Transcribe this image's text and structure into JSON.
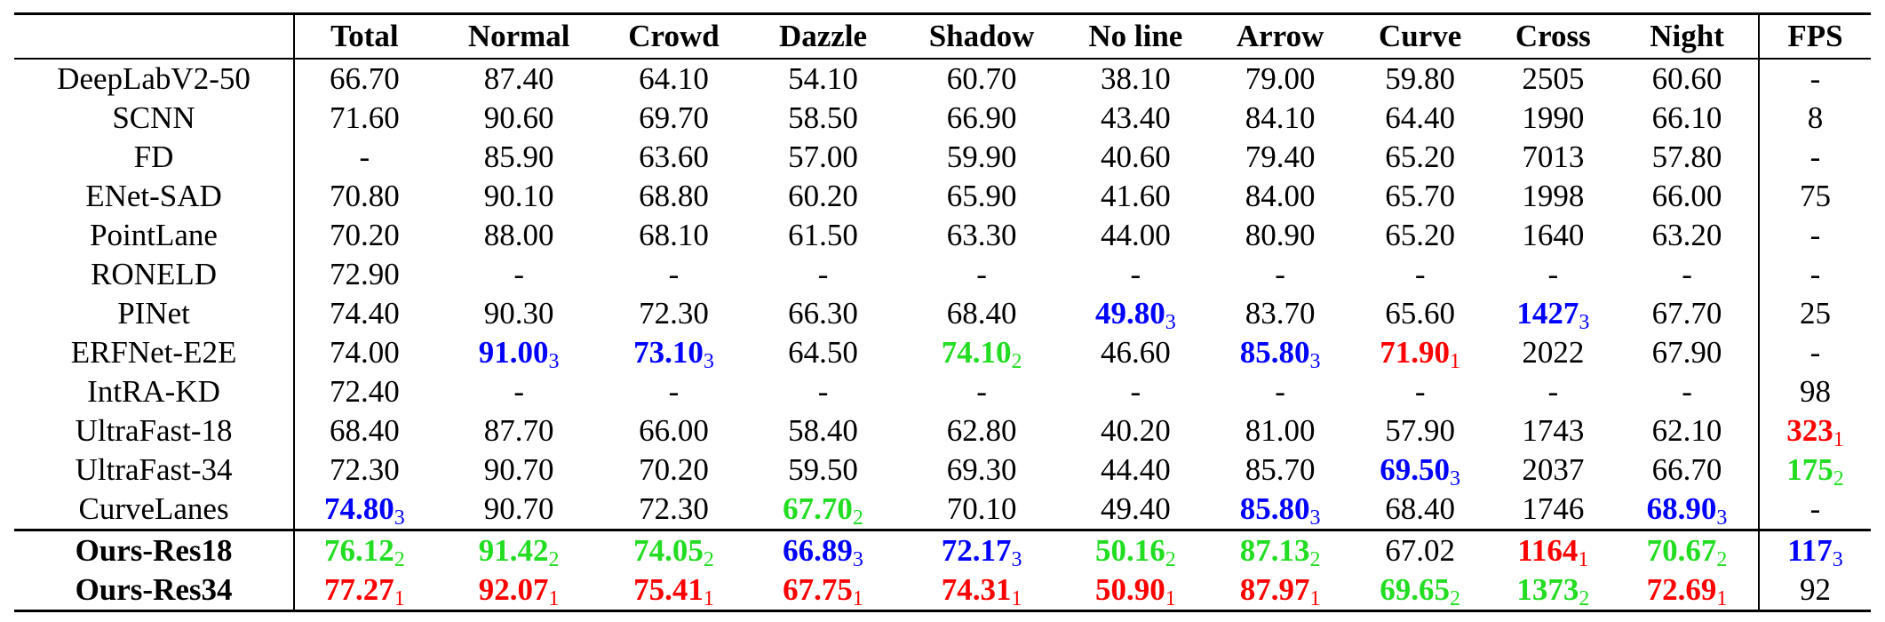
{
  "colors": {
    "rank1": "#ff0000",
    "rank2": "#22dd22",
    "rank3": "#0000ff"
  },
  "headers": [
    "",
    "Total",
    "Normal",
    "Crowd",
    "Dazzle",
    "Shadow",
    "No line",
    "Arrow",
    "Curve",
    "Cross",
    "Night",
    "FPS"
  ],
  "rows": [
    {
      "method": "DeepLabV2-50",
      "ours": false,
      "cells": [
        {
          "v": "66.70"
        },
        {
          "v": "87.40"
        },
        {
          "v": "64.10"
        },
        {
          "v": "54.10"
        },
        {
          "v": "60.70"
        },
        {
          "v": "38.10"
        },
        {
          "v": "79.00"
        },
        {
          "v": "59.80"
        },
        {
          "v": "2505"
        },
        {
          "v": "60.60"
        },
        {
          "v": "-"
        }
      ]
    },
    {
      "method": "SCNN",
      "ours": false,
      "cells": [
        {
          "v": "71.60"
        },
        {
          "v": "90.60"
        },
        {
          "v": "69.70"
        },
        {
          "v": "58.50"
        },
        {
          "v": "66.90"
        },
        {
          "v": "43.40"
        },
        {
          "v": "84.10"
        },
        {
          "v": "64.40"
        },
        {
          "v": "1990"
        },
        {
          "v": "66.10"
        },
        {
          "v": "8"
        }
      ]
    },
    {
      "method": "FD",
      "ours": false,
      "cells": [
        {
          "v": "-"
        },
        {
          "v": "85.90"
        },
        {
          "v": "63.60"
        },
        {
          "v": "57.00"
        },
        {
          "v": "59.90"
        },
        {
          "v": "40.60"
        },
        {
          "v": "79.40"
        },
        {
          "v": "65.20"
        },
        {
          "v": "7013"
        },
        {
          "v": "57.80"
        },
        {
          "v": "-"
        }
      ]
    },
    {
      "method": "ENet-SAD",
      "ours": false,
      "cells": [
        {
          "v": "70.80"
        },
        {
          "v": "90.10"
        },
        {
          "v": "68.80"
        },
        {
          "v": "60.20"
        },
        {
          "v": "65.90"
        },
        {
          "v": "41.60"
        },
        {
          "v": "84.00"
        },
        {
          "v": "65.70"
        },
        {
          "v": "1998"
        },
        {
          "v": "66.00"
        },
        {
          "v": "75"
        }
      ]
    },
    {
      "method": "PointLane",
      "ours": false,
      "cells": [
        {
          "v": "70.20"
        },
        {
          "v": "88.00"
        },
        {
          "v": "68.10"
        },
        {
          "v": "61.50"
        },
        {
          "v": "63.30"
        },
        {
          "v": "44.00"
        },
        {
          "v": "80.90"
        },
        {
          "v": "65.20"
        },
        {
          "v": "1640"
        },
        {
          "v": "63.20"
        },
        {
          "v": "-"
        }
      ]
    },
    {
      "method": "RONELD",
      "ours": false,
      "cells": [
        {
          "v": "72.90"
        },
        {
          "v": "-"
        },
        {
          "v": "-"
        },
        {
          "v": "-"
        },
        {
          "v": "-"
        },
        {
          "v": "-"
        },
        {
          "v": "-"
        },
        {
          "v": "-"
        },
        {
          "v": "-"
        },
        {
          "v": "-"
        },
        {
          "v": "-"
        }
      ]
    },
    {
      "method": "PINet",
      "ours": false,
      "cells": [
        {
          "v": "74.40"
        },
        {
          "v": "90.30"
        },
        {
          "v": "72.30"
        },
        {
          "v": "66.30"
        },
        {
          "v": "68.40"
        },
        {
          "v": "49.80",
          "r": "3"
        },
        {
          "v": "83.70"
        },
        {
          "v": "65.60"
        },
        {
          "v": "1427",
          "r": "3"
        },
        {
          "v": "67.70"
        },
        {
          "v": "25"
        }
      ]
    },
    {
      "method": "ERFNet-E2E",
      "ours": false,
      "cells": [
        {
          "v": "74.00"
        },
        {
          "v": "91.00",
          "r": "3"
        },
        {
          "v": "73.10",
          "r": "3"
        },
        {
          "v": "64.50"
        },
        {
          "v": "74.10",
          "r": "2"
        },
        {
          "v": "46.60"
        },
        {
          "v": "85.80",
          "r": "3"
        },
        {
          "v": "71.90",
          "r": "1"
        },
        {
          "v": "2022"
        },
        {
          "v": "67.90"
        },
        {
          "v": "-"
        }
      ]
    },
    {
      "method": "IntRA-KD",
      "ours": false,
      "cells": [
        {
          "v": "72.40"
        },
        {
          "v": "-"
        },
        {
          "v": "-"
        },
        {
          "v": "-"
        },
        {
          "v": "-"
        },
        {
          "v": "-"
        },
        {
          "v": "-"
        },
        {
          "v": "-"
        },
        {
          "v": "-"
        },
        {
          "v": "-"
        },
        {
          "v": "98"
        }
      ]
    },
    {
      "method": "UltraFast-18",
      "ours": false,
      "cells": [
        {
          "v": "68.40"
        },
        {
          "v": "87.70"
        },
        {
          "v": "66.00"
        },
        {
          "v": "58.40"
        },
        {
          "v": "62.80"
        },
        {
          "v": "40.20"
        },
        {
          "v": "81.00"
        },
        {
          "v": "57.90"
        },
        {
          "v": "1743"
        },
        {
          "v": "62.10"
        },
        {
          "v": "323",
          "r": "1"
        }
      ]
    },
    {
      "method": "UltraFast-34",
      "ours": false,
      "cells": [
        {
          "v": "72.30"
        },
        {
          "v": "90.70"
        },
        {
          "v": "70.20"
        },
        {
          "v": "59.50"
        },
        {
          "v": "69.30"
        },
        {
          "v": "44.40"
        },
        {
          "v": "85.70"
        },
        {
          "v": "69.50",
          "r": "3"
        },
        {
          "v": "2037"
        },
        {
          "v": "66.70"
        },
        {
          "v": "175",
          "r": "2"
        }
      ]
    },
    {
      "method": "CurveLanes",
      "ours": false,
      "cells": [
        {
          "v": "74.80",
          "r": "3"
        },
        {
          "v": "90.70"
        },
        {
          "v": "72.30"
        },
        {
          "v": "67.70",
          "r": "2"
        },
        {
          "v": "70.10"
        },
        {
          "v": "49.40"
        },
        {
          "v": "85.80",
          "r": "3"
        },
        {
          "v": "68.40"
        },
        {
          "v": "1746"
        },
        {
          "v": "68.90",
          "r": "3"
        },
        {
          "v": "-"
        }
      ]
    },
    {
      "method": "Ours-Res18",
      "ours": true,
      "cells": [
        {
          "v": "76.12",
          "r": "2"
        },
        {
          "v": "91.42",
          "r": "2"
        },
        {
          "v": "74.05",
          "r": "2"
        },
        {
          "v": "66.89",
          "r": "3"
        },
        {
          "v": "72.17",
          "r": "3"
        },
        {
          "v": "50.16",
          "r": "2"
        },
        {
          "v": "87.13",
          "r": "2"
        },
        {
          "v": "67.02"
        },
        {
          "v": "1164",
          "r": "1"
        },
        {
          "v": "70.67",
          "r": "2"
        },
        {
          "v": "117",
          "r": "3"
        }
      ]
    },
    {
      "method": "Ours-Res34",
      "ours": true,
      "cells": [
        {
          "v": "77.27",
          "r": "1"
        },
        {
          "v": "92.07",
          "r": "1"
        },
        {
          "v": "75.41",
          "r": "1"
        },
        {
          "v": "67.75",
          "r": "1"
        },
        {
          "v": "74.31",
          "r": "1"
        },
        {
          "v": "50.90",
          "r": "1"
        },
        {
          "v": "87.97",
          "r": "1"
        },
        {
          "v": "69.65",
          "r": "2"
        },
        {
          "v": "1373",
          "r": "2"
        },
        {
          "v": "72.69",
          "r": "1"
        },
        {
          "v": "92"
        }
      ]
    }
  ]
}
